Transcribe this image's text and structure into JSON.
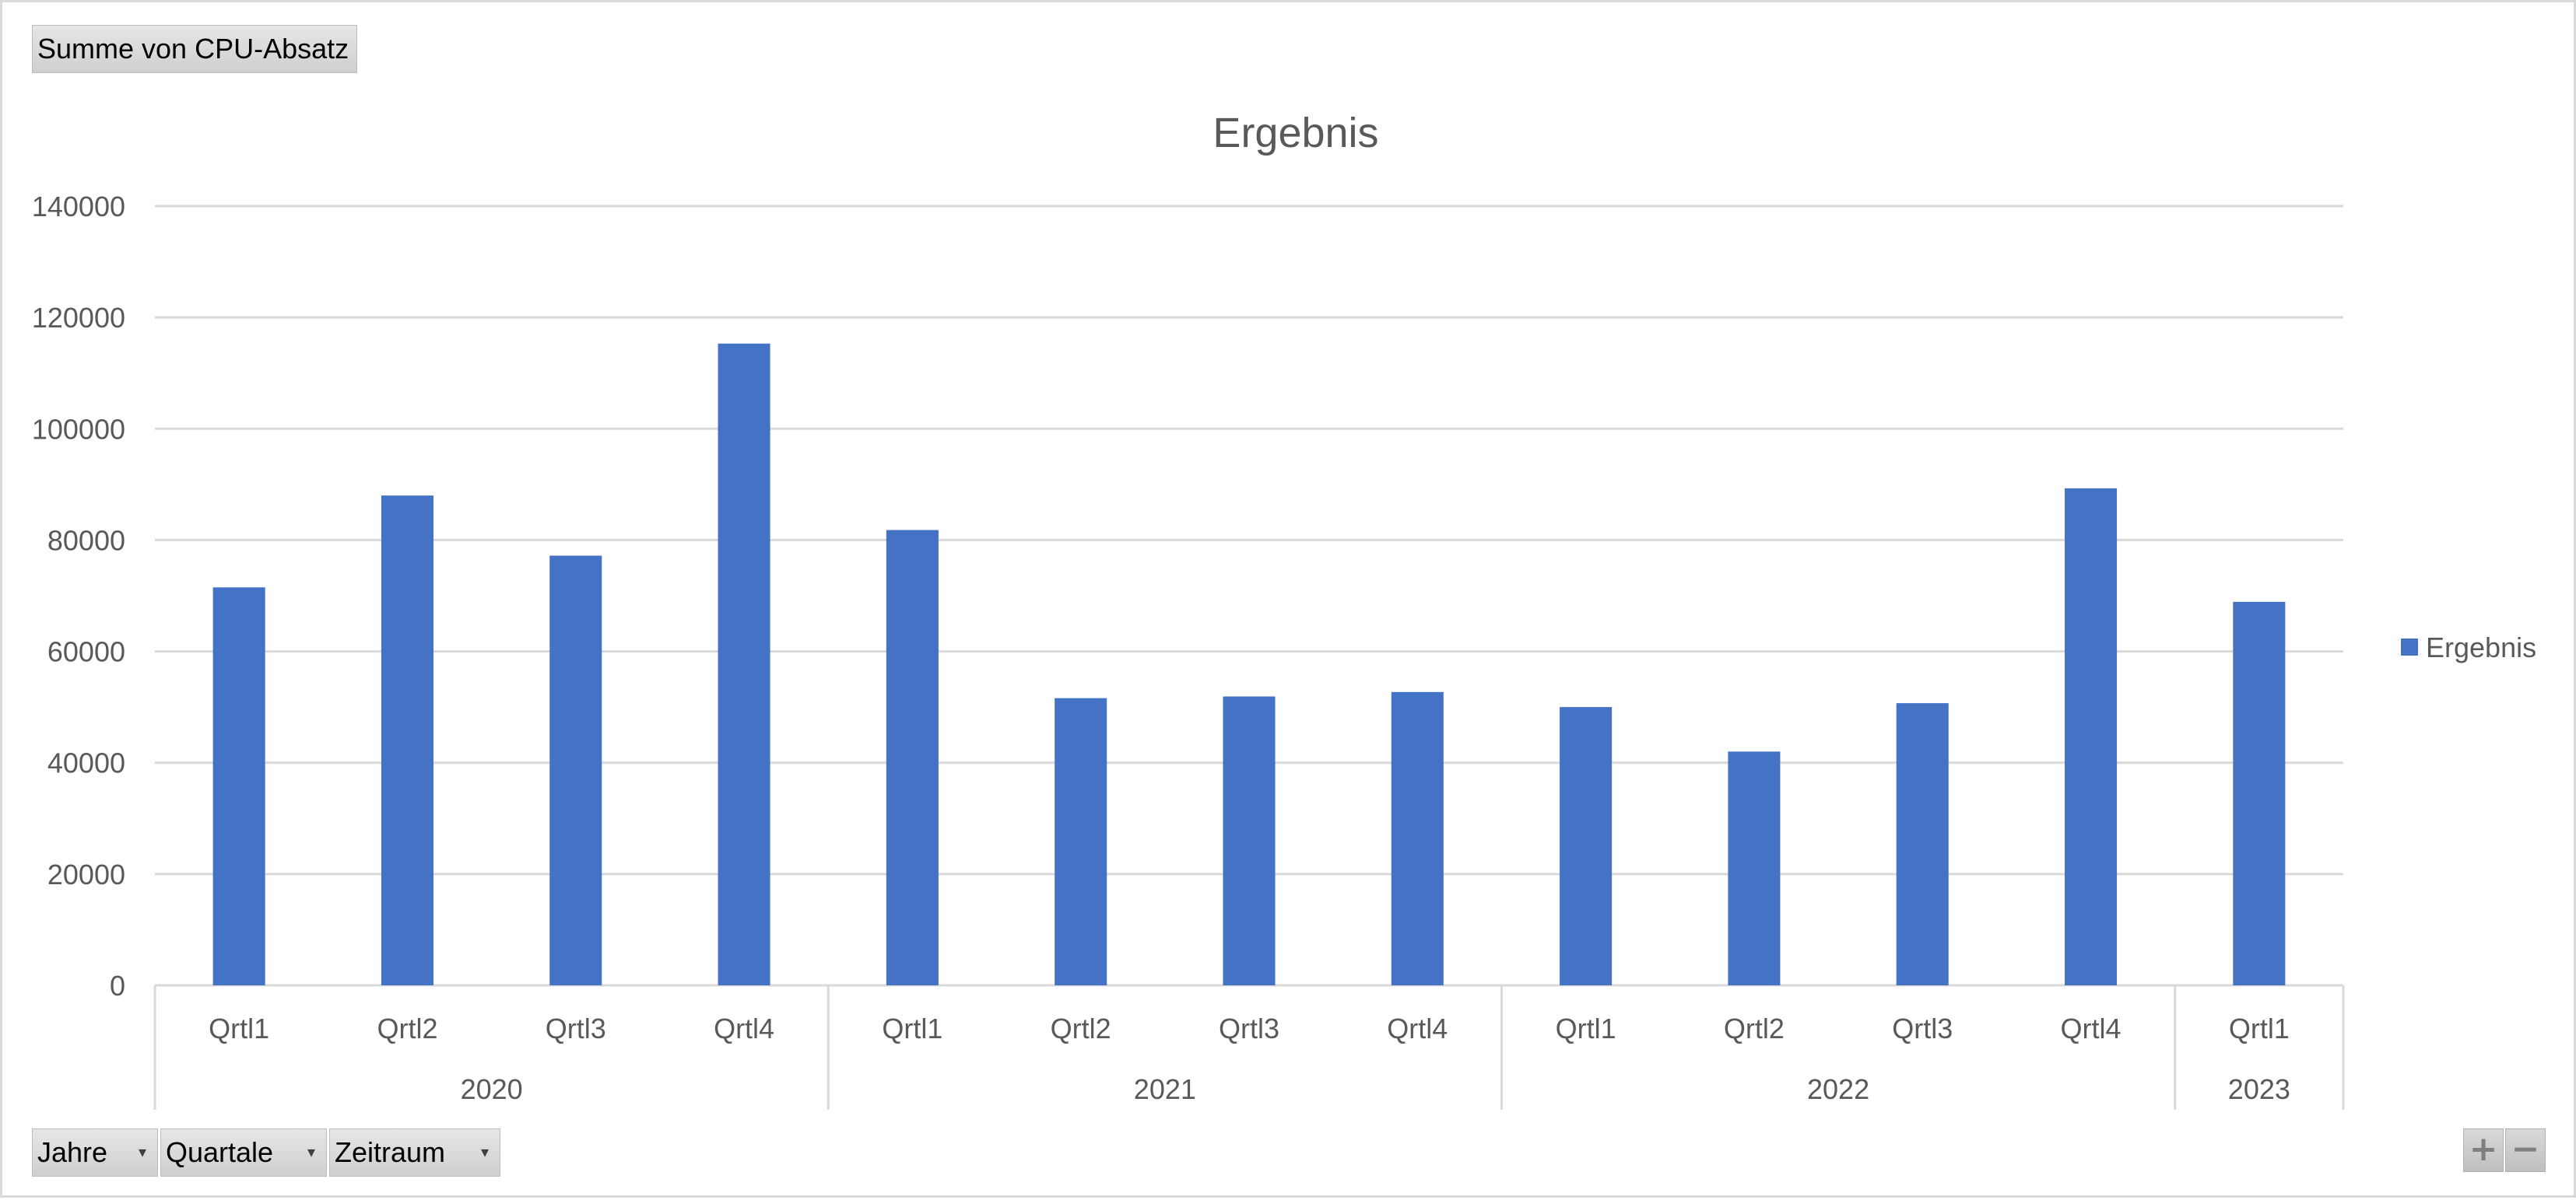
{
  "controls": {
    "value_field": "Summe von CPU-Absatz",
    "axis_fields": [
      "Jahre",
      "Quartale",
      "Zeitraum"
    ],
    "zoom_in": "+",
    "zoom_out": "−"
  },
  "colors": {
    "bar": "#4472C4",
    "gridline": "#d9d9d9",
    "text": "#595959"
  },
  "chart_data": {
    "type": "bar",
    "title": "Ergebnis",
    "xlabel": "",
    "ylabel": "",
    "ylim": [
      0,
      140000
    ],
    "yticks": [
      0,
      20000,
      40000,
      60000,
      80000,
      100000,
      120000,
      140000
    ],
    "grid": true,
    "legend_position": "right",
    "categories": [
      "Qrtl1",
      "Qrtl2",
      "Qrtl3",
      "Qrtl4",
      "Qrtl1",
      "Qrtl2",
      "Qrtl3",
      "Qrtl4",
      "Qrtl1",
      "Qrtl2",
      "Qrtl3",
      "Qrtl4",
      "Qrtl1"
    ],
    "groups": [
      {
        "label": "2020",
        "count": 4
      },
      {
        "label": "2021",
        "count": 4
      },
      {
        "label": "2022",
        "count": 4
      },
      {
        "label": "2023",
        "count": 1
      }
    ],
    "series": [
      {
        "name": "Ergebnis",
        "values": [
          71500,
          88000,
          77200,
          115300,
          81800,
          51600,
          51900,
          52700,
          50000,
          42000,
          50700,
          89300,
          68900
        ]
      }
    ]
  }
}
